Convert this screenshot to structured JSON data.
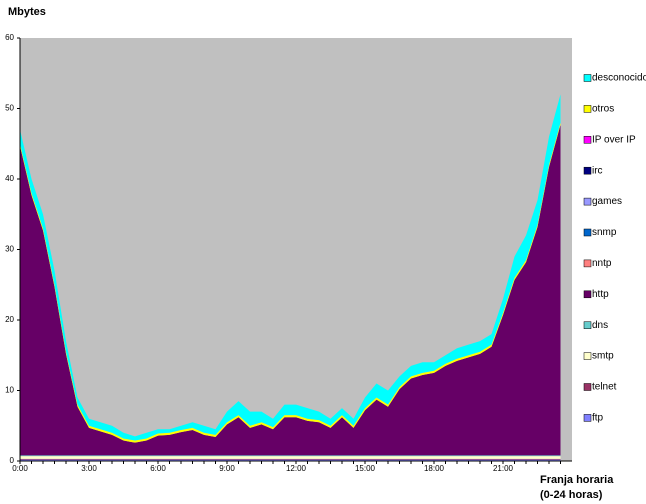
{
  "chart_data": {
    "type": "stacked-area",
    "y_axis_label": "Mbytes",
    "x_axis_label": [
      "Franja horaria",
      "(0-24 horas)"
    ],
    "categories": [
      "0:00",
      null,
      null,
      null,
      null,
      null,
      "3:00",
      null,
      null,
      null,
      null,
      null,
      "6:00",
      null,
      null,
      null,
      null,
      null,
      "9:00",
      null,
      null,
      null,
      null,
      null,
      "12:00",
      null,
      null,
      null,
      null,
      null,
      "15:00",
      null,
      null,
      null,
      null,
      null,
      "18:00",
      null,
      null,
      null,
      null,
      null,
      "21:00",
      null,
      null,
      null,
      null,
      null
    ],
    "ylim": [
      0,
      60
    ],
    "yticks": [
      0,
      10,
      20,
      30,
      40,
      50,
      60
    ],
    "plot_background": "#c0c0c0",
    "legend": "right",
    "series": [
      {
        "name": "ftp",
        "color": "#8080ff",
        "values": [
          0.2,
          0.2,
          0.2,
          0.2,
          0.2,
          0.2,
          0.2,
          0.2,
          0.2,
          0.2,
          0.2,
          0.2,
          0.2,
          0.2,
          0.2,
          0.2,
          0.2,
          0.2,
          0.2,
          0.2,
          0.2,
          0.2,
          0.2,
          0.2,
          0.2,
          0.2,
          0.2,
          0.2,
          0.2,
          0.2,
          0.2,
          0.2,
          0.2,
          0.2,
          0.2,
          0.2,
          0.2,
          0.2,
          0.2,
          0.2,
          0.2,
          0.2,
          0.2,
          0.2,
          0.2,
          0.2,
          0.2,
          0.2
        ]
      },
      {
        "name": "telnet",
        "color": "#993366",
        "values": [
          0.1,
          0.1,
          0.1,
          0.1,
          0.1,
          0.1,
          0.1,
          0.1,
          0.1,
          0.1,
          0.1,
          0.1,
          0.1,
          0.1,
          0.1,
          0.1,
          0.1,
          0.1,
          0.1,
          0.1,
          0.1,
          0.1,
          0.1,
          0.1,
          0.1,
          0.1,
          0.1,
          0.1,
          0.1,
          0.1,
          0.1,
          0.1,
          0.1,
          0.1,
          0.1,
          0.1,
          0.1,
          0.1,
          0.1,
          0.1,
          0.1,
          0.1,
          0.1,
          0.1,
          0.1,
          0.1,
          0.1,
          0.1
        ]
      },
      {
        "name": "smtp",
        "color": "#ffffcc",
        "values": [
          0.4,
          0.4,
          0.4,
          0.4,
          0.4,
          0.4,
          0.4,
          0.4,
          0.4,
          0.4,
          0.4,
          0.4,
          0.4,
          0.4,
          0.4,
          0.4,
          0.4,
          0.4,
          0.4,
          0.4,
          0.4,
          0.4,
          0.4,
          0.4,
          0.4,
          0.4,
          0.4,
          0.4,
          0.4,
          0.4,
          0.4,
          0.4,
          0.4,
          0.4,
          0.4,
          0.4,
          0.4,
          0.4,
          0.4,
          0.4,
          0.4,
          0.4,
          0.4,
          0.4,
          0.4,
          0.4,
          0.4,
          0.4
        ]
      },
      {
        "name": "dns",
        "color": "#66cccc",
        "values": [
          0.1,
          0.1,
          0.1,
          0.1,
          0.1,
          0.1,
          0.1,
          0.1,
          0.1,
          0.1,
          0.1,
          0.1,
          0.1,
          0.1,
          0.1,
          0.1,
          0.1,
          0.1,
          0.1,
          0.1,
          0.1,
          0.1,
          0.1,
          0.1,
          0.1,
          0.1,
          0.1,
          0.1,
          0.1,
          0.1,
          0.1,
          0.1,
          0.1,
          0.1,
          0.1,
          0.1,
          0.1,
          0.1,
          0.1,
          0.1,
          0.1,
          0.1,
          0.1,
          0.1,
          0.1,
          0.1,
          0.1,
          0.1
        ]
      },
      {
        "name": "http",
        "color": "#660066",
        "values": [
          43.9,
          36.9,
          31.9,
          23.9,
          14.4,
          6.9,
          3.9,
          3.4,
          2.9,
          2.1,
          1.8,
          2.1,
          2.8,
          2.9,
          3.3,
          3.6,
          2.9,
          2.6,
          4.4,
          5.4,
          3.9,
          4.4,
          3.7,
          5.4,
          5.4,
          4.9,
          4.7,
          3.9,
          5.4,
          3.9,
          6.4,
          7.9,
          6.9,
          9.4,
          10.9,
          11.4,
          11.7,
          12.7,
          13.4,
          13.9,
          14.4,
          15.4,
          19.9,
          24.9,
          27.4,
          32.4,
          40.9,
          46.9
        ]
      },
      {
        "name": "nntp",
        "color": "#ff8080",
        "values": [
          0,
          0,
          0,
          0,
          0,
          0,
          0,
          0,
          0,
          0,
          0,
          0,
          0,
          0,
          0,
          0,
          0,
          0,
          0,
          0,
          0,
          0,
          0,
          0,
          0,
          0,
          0,
          0,
          0,
          0,
          0,
          0,
          0,
          0,
          0,
          0,
          0,
          0,
          0,
          0,
          0,
          0,
          0,
          0,
          0,
          0,
          0,
          0
        ]
      },
      {
        "name": "snmp",
        "color": "#0066cc",
        "values": [
          0,
          0,
          0,
          0,
          0,
          0,
          0,
          0,
          0,
          0,
          0,
          0,
          0,
          0,
          0,
          0,
          0,
          0,
          0,
          0,
          0,
          0,
          0,
          0,
          0,
          0,
          0,
          0,
          0,
          0,
          0,
          0,
          0,
          0,
          0,
          0,
          0,
          0,
          0,
          0,
          0,
          0,
          0,
          0,
          0,
          0,
          0,
          0
        ]
      },
      {
        "name": "games",
        "color": "#9999ff",
        "values": [
          0,
          0,
          0,
          0,
          0,
          0,
          0,
          0,
          0,
          0,
          0,
          0,
          0,
          0,
          0,
          0,
          0,
          0,
          0,
          0,
          0,
          0,
          0,
          0,
          0,
          0,
          0,
          0,
          0,
          0,
          0,
          0,
          0,
          0,
          0,
          0,
          0,
          0,
          0,
          0,
          0,
          0,
          0,
          0,
          0,
          0,
          0,
          0
        ]
      },
      {
        "name": "irc",
        "color": "#000080",
        "values": [
          0,
          0,
          0,
          0,
          0,
          0,
          0,
          0,
          0,
          0,
          0,
          0,
          0,
          0,
          0,
          0,
          0,
          0,
          0,
          0,
          0,
          0,
          0,
          0,
          0,
          0,
          0,
          0,
          0,
          0,
          0,
          0,
          0,
          0,
          0,
          0,
          0,
          0,
          0,
          0,
          0,
          0,
          0,
          0,
          0,
          0,
          0,
          0
        ]
      },
      {
        "name": "IP over IP",
        "color": "#ff00ff",
        "values": [
          0,
          0,
          0,
          0,
          0,
          0,
          0,
          0,
          0,
          0,
          0,
          0,
          0,
          0,
          0,
          0,
          0,
          0,
          0,
          0,
          0,
          0,
          0,
          0,
          0,
          0,
          0,
          0,
          0,
          0,
          0,
          0,
          0,
          0,
          0,
          0,
          0,
          0,
          0,
          0,
          0,
          0,
          0,
          0,
          0,
          0,
          0,
          0
        ]
      },
      {
        "name": "otros",
        "color": "#ffff00",
        "values": [
          0.3,
          0.3,
          0.3,
          0.3,
          0.3,
          0.3,
          0.3,
          0.3,
          0.3,
          0.3,
          0.3,
          0.3,
          0.3,
          0.3,
          0.3,
          0.3,
          0.3,
          0.3,
          0.3,
          0.3,
          0.3,
          0.3,
          0.3,
          0.3,
          0.3,
          0.3,
          0.3,
          0.3,
          0.3,
          0.3,
          0.3,
          0.3,
          0.3,
          0.3,
          0.3,
          0.3,
          0.3,
          0.3,
          0.3,
          0.3,
          0.3,
          0.3,
          0.3,
          0.3,
          0.3,
          0.3,
          0.3,
          0.3
        ]
      },
      {
        "name": "desconocido",
        "color": "#00ffff",
        "values": [
          2,
          2,
          2,
          2,
          1.5,
          1,
          1,
          1,
          1,
          0.8,
          0.6,
          0.8,
          0.6,
          0.5,
          0.6,
          0.8,
          1,
          0.8,
          1.5,
          2,
          2,
          1.5,
          1.2,
          1.5,
          1.5,
          1.5,
          1.2,
          1,
          1,
          1,
          1.5,
          2,
          2,
          1.5,
          1.5,
          1.5,
          1.2,
          1.2,
          1.5,
          1.5,
          1.5,
          1.5,
          2,
          3,
          3.5,
          3.5,
          4,
          4
        ]
      }
    ]
  }
}
